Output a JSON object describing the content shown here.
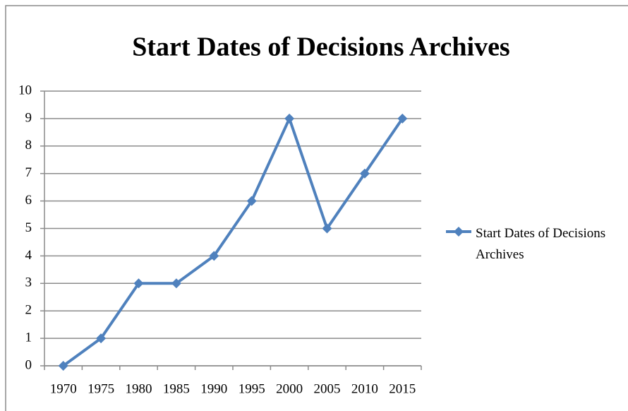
{
  "chart_data": {
    "type": "line",
    "title": "Start Dates of Decisions Archives",
    "categories": [
      "1970",
      "1975",
      "1980",
      "1985",
      "1990",
      "1995",
      "2000",
      "2005",
      "2010",
      "2015"
    ],
    "series": [
      {
        "name": "Start Dates of Decisions Archives",
        "color": "#4f81bd",
        "values": [
          0,
          1,
          3,
          3,
          4,
          6,
          9,
          5,
          7,
          9
        ]
      }
    ],
    "ylim": [
      0,
      10
    ],
    "yticks": [
      0,
      1,
      2,
      3,
      4,
      5,
      6,
      7,
      8,
      9,
      10
    ],
    "grid": true,
    "legend": "right"
  }
}
